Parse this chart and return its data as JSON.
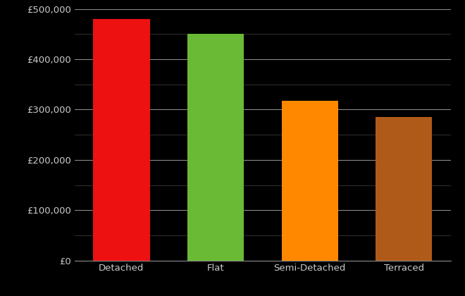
{
  "categories": [
    "Detached",
    "Flat",
    "Semi-Detached",
    "Terraced"
  ],
  "values": [
    480000,
    450000,
    317000,
    285000
  ],
  "bar_colors": [
    "#ee1111",
    "#6aba35",
    "#ff8800",
    "#b05a1a"
  ],
  "background_color": "#000000",
  "text_color": "#cccccc",
  "grid_color_major": "#888888",
  "grid_color_minor": "#444444",
  "ylim": [
    0,
    500000
  ],
  "ytick_major_step": 100000,
  "ytick_minor_step": 50000,
  "tick_fontsize": 9.5,
  "bar_width": 0.6,
  "figsize": [
    6.6,
    4.2
  ],
  "dpi": 100
}
